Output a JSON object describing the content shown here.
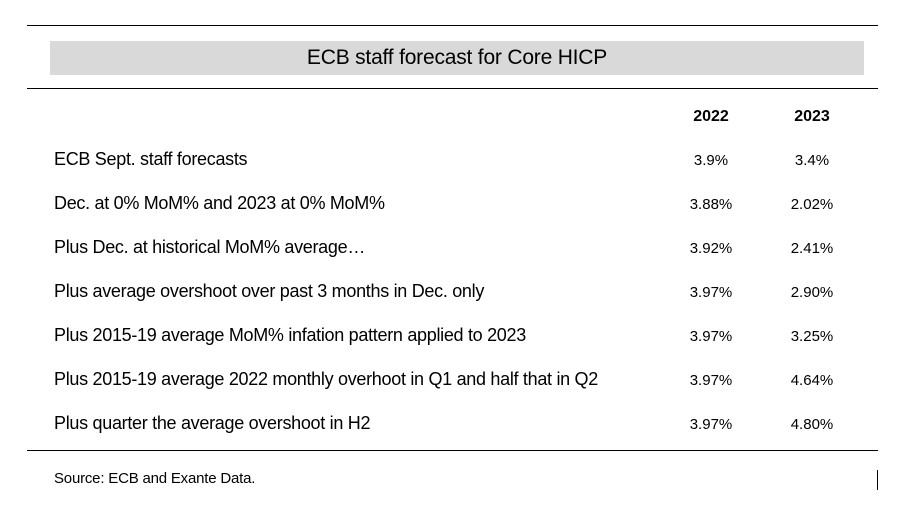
{
  "table": {
    "title": "ECB staff forecast for Core HICP",
    "columns": [
      "2022",
      "2023"
    ],
    "rows": [
      {
        "label": "ECB Sept. staff forecasts",
        "v2022": "3.9%",
        "v2023": "3.4%"
      },
      {
        "label": "Dec. at 0% MoM% and 2023 at 0% MoM%",
        "v2022": "3.88%",
        "v2023": "2.02%"
      },
      {
        "label": "Plus Dec. at historical MoM% average…",
        "v2022": "3.92%",
        "v2023": "2.41%"
      },
      {
        "label": "Plus average overshoot over past 3 months in Dec. only",
        "v2022": "3.97%",
        "v2023": "2.90%"
      },
      {
        "label": "Plus 2015-19 average MoM% infation pattern applied to 2023",
        "v2022": "3.97%",
        "v2023": "3.25%"
      },
      {
        "label": "Plus 2015-19 average 2022 monthly overhoot in Q1 and half that in Q2",
        "v2022": "3.97%",
        "v2023": "4.64%"
      },
      {
        "label": "Plus quarter the average overshoot in H2",
        "v2022": "3.97%",
        "v2023": "4.80%"
      }
    ],
    "source": "Source: ECB and Exante Data."
  }
}
